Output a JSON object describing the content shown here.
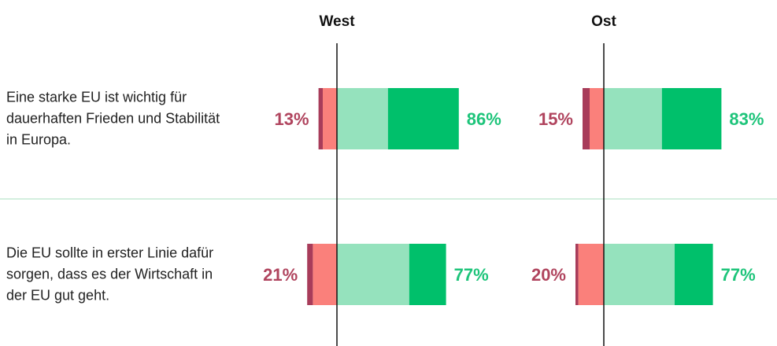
{
  "chart_data": {
    "type": "bar",
    "categories": [
      "Eine starke EU ist wichtig für dauerhaften Frieden und Stabilität in Europa.",
      "Die EU sollte in erster Linie dafür sorgen, dass es der Wirtschaft in der EU gut geht."
    ],
    "xlim": [
      -35,
      100
    ],
    "panels": [
      {
        "title": "West",
        "series": [
          {
            "color": "#fa807b",
            "values": [
              -10,
              -17
            ]
          },
          {
            "color": "#a83c5a",
            "values": [
              -3,
              -4
            ]
          },
          {
            "color": "#95e2bd",
            "values": [
              36,
              51
            ]
          },
          {
            "color": "#00c06b",
            "values": [
              50,
              26
            ]
          }
        ],
        "negative_totals": {
          "values": [
            13,
            21
          ],
          "value_labels": [
            "13%",
            "21%"
          ]
        },
        "positive_totals": {
          "values": [
            86,
            77
          ],
          "value_labels": [
            "86%",
            "77%"
          ]
        }
      },
      {
        "title": "Ost",
        "series": [
          {
            "color": "#fa807b",
            "values": [
              -10,
              -18
            ]
          },
          {
            "color": "#a83c5a",
            "values": [
              -5,
              -2
            ]
          },
          {
            "color": "#95e2bd",
            "values": [
              41,
              50
            ]
          },
          {
            "color": "#00c06b",
            "values": [
              42,
              27
            ]
          }
        ],
        "negative_totals": {
          "values": [
            15,
            20
          ],
          "value_labels": [
            "15%",
            "20%"
          ]
        },
        "positive_totals": {
          "values": [
            83,
            77
          ],
          "value_labels": [
            "83%",
            "77%"
          ]
        }
      }
    ]
  }
}
